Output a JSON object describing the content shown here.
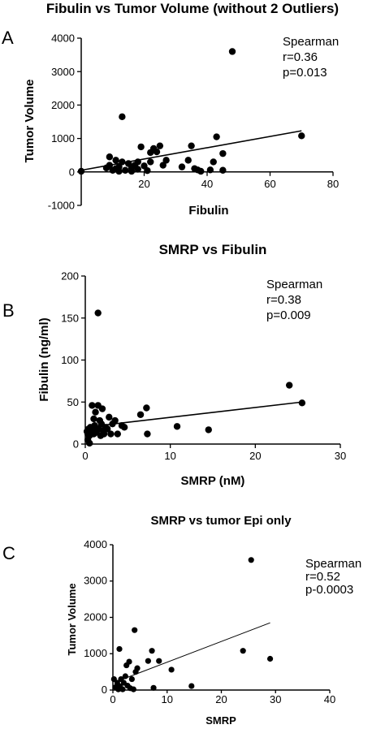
{
  "chart_data": [
    {
      "panel": "A",
      "type": "scatter",
      "title": "Fibulin vs Tumor Volume (without 2 Outliers)",
      "xlabel": "Fibulin",
      "ylabel": "Tumor Volume",
      "xlim": [
        0,
        80
      ],
      "ylim": [
        -1000,
        4000
      ],
      "xticks": [
        20,
        40,
        60,
        80
      ],
      "yticks": [
        -1000,
        0,
        1000,
        2000,
        3000,
        4000
      ],
      "stats": [
        "Spearman",
        "r=0.36",
        "p=0.013"
      ],
      "points": [
        [
          0,
          20
        ],
        [
          8,
          120
        ],
        [
          9,
          200
        ],
        [
          9,
          450
        ],
        [
          10,
          50
        ],
        [
          11,
          100
        ],
        [
          11,
          350
        ],
        [
          12,
          20
        ],
        [
          12,
          150
        ],
        [
          13,
          1650
        ],
        [
          13,
          300
        ],
        [
          14,
          50
        ],
        [
          15,
          250
        ],
        [
          16,
          120
        ],
        [
          16,
          20
        ],
        [
          17,
          200
        ],
        [
          18,
          80
        ],
        [
          18,
          300
        ],
        [
          19,
          750
        ],
        [
          20,
          180
        ],
        [
          21,
          40
        ],
        [
          22,
          300
        ],
        [
          22,
          580
        ],
        [
          23,
          700
        ],
        [
          24,
          600
        ],
        [
          25,
          780
        ],
        [
          26,
          200
        ],
        [
          27,
          350
        ],
        [
          32,
          150
        ],
        [
          34,
          350
        ],
        [
          35,
          780
        ],
        [
          36,
          100
        ],
        [
          37,
          60
        ],
        [
          38,
          20
        ],
        [
          41,
          60
        ],
        [
          42,
          300
        ],
        [
          43,
          1050
        ],
        [
          45,
          550
        ],
        [
          45,
          50
        ],
        [
          48,
          3600
        ],
        [
          70,
          1080
        ]
      ],
      "trend": [
        [
          0,
          50
        ],
        [
          70,
          1230
        ]
      ]
    },
    {
      "panel": "B",
      "type": "scatter",
      "title": "SMRP vs Fibulin",
      "xlabel": "SMRP (nM)",
      "ylabel": "Fibulin (ng/ml)",
      "xlim": [
        0,
        30
      ],
      "ylim": [
        0,
        200
      ],
      "xticks": [
        0,
        10,
        20,
        30
      ],
      "yticks": [
        0,
        50,
        100,
        150,
        200
      ],
      "stats": [
        "Spearman",
        "r=0.38",
        "p=0.009"
      ],
      "points": [
        [
          0.2,
          15
        ],
        [
          0.3,
          12
        ],
        [
          0.4,
          18
        ],
        [
          0.5,
          10
        ],
        [
          0.6,
          20
        ],
        [
          0.7,
          14
        ],
        [
          0.8,
          46
        ],
        [
          0.9,
          16
        ],
        [
          1.0,
          12
        ],
        [
          1.1,
          22
        ],
        [
          1.2,
          38
        ],
        [
          1.3,
          14
        ],
        [
          1.5,
          156
        ],
        [
          1.5,
          46
        ],
        [
          1.6,
          18
        ],
        [
          1.7,
          28
        ],
        [
          1.8,
          10
        ],
        [
          1.9,
          24
        ],
        [
          2.0,
          42
        ],
        [
          2.1,
          16
        ],
        [
          2.2,
          12
        ],
        [
          2.4,
          20
        ],
        [
          2.6,
          18
        ],
        [
          2.8,
          32
        ],
        [
          3.0,
          12
        ],
        [
          3.2,
          24
        ],
        [
          3.5,
          28
        ],
        [
          3.8,
          12
        ],
        [
          4.3,
          22
        ],
        [
          4.6,
          20
        ],
        [
          6.5,
          35
        ],
        [
          7.2,
          43
        ],
        [
          7.3,
          12
        ],
        [
          10.8,
          21
        ],
        [
          14.5,
          17
        ],
        [
          24,
          70
        ],
        [
          25.5,
          49
        ],
        [
          0.5,
          1
        ],
        [
          0.3,
          5
        ],
        [
          1.0,
          30
        ]
      ],
      "trend": [
        [
          0,
          20
        ],
        [
          25.5,
          50
        ]
      ]
    },
    {
      "panel": "C",
      "type": "scatter",
      "title": "SMRP vs tumor Epi only",
      "xlabel": "SMRP",
      "ylabel": "Tumor Volume",
      "xlim": [
        0,
        40
      ],
      "ylim": [
        0,
        4000
      ],
      "xticks": [
        0,
        10,
        20,
        30,
        40
      ],
      "yticks": [
        0,
        1000,
        2000,
        3000,
        4000
      ],
      "stats": [
        "Spearman",
        "r=0.52",
        "p-0.0003"
      ],
      "points": [
        [
          0.2,
          300
        ],
        [
          0.5,
          80
        ],
        [
          0.8,
          200
        ],
        [
          1.0,
          20
        ],
        [
          1.2,
          1130
        ],
        [
          1.3,
          100
        ],
        [
          1.5,
          300
        ],
        [
          1.8,
          20
        ],
        [
          2.0,
          200
        ],
        [
          2.3,
          380
        ],
        [
          2.5,
          680
        ],
        [
          2.7,
          120
        ],
        [
          3.0,
          780
        ],
        [
          3.2,
          50
        ],
        [
          3.5,
          300
        ],
        [
          3.8,
          20
        ],
        [
          4.0,
          1650
        ],
        [
          4.2,
          500
        ],
        [
          4.5,
          600
        ],
        [
          6.5,
          800
        ],
        [
          7.2,
          1080
        ],
        [
          7.5,
          60
        ],
        [
          8.5,
          800
        ],
        [
          10.8,
          560
        ],
        [
          14.5,
          110
        ],
        [
          24,
          1080
        ],
        [
          25.5,
          3580
        ],
        [
          29,
          860
        ]
      ],
      "trend": [
        [
          2,
          310
        ],
        [
          29,
          1850
        ]
      ]
    }
  ]
}
